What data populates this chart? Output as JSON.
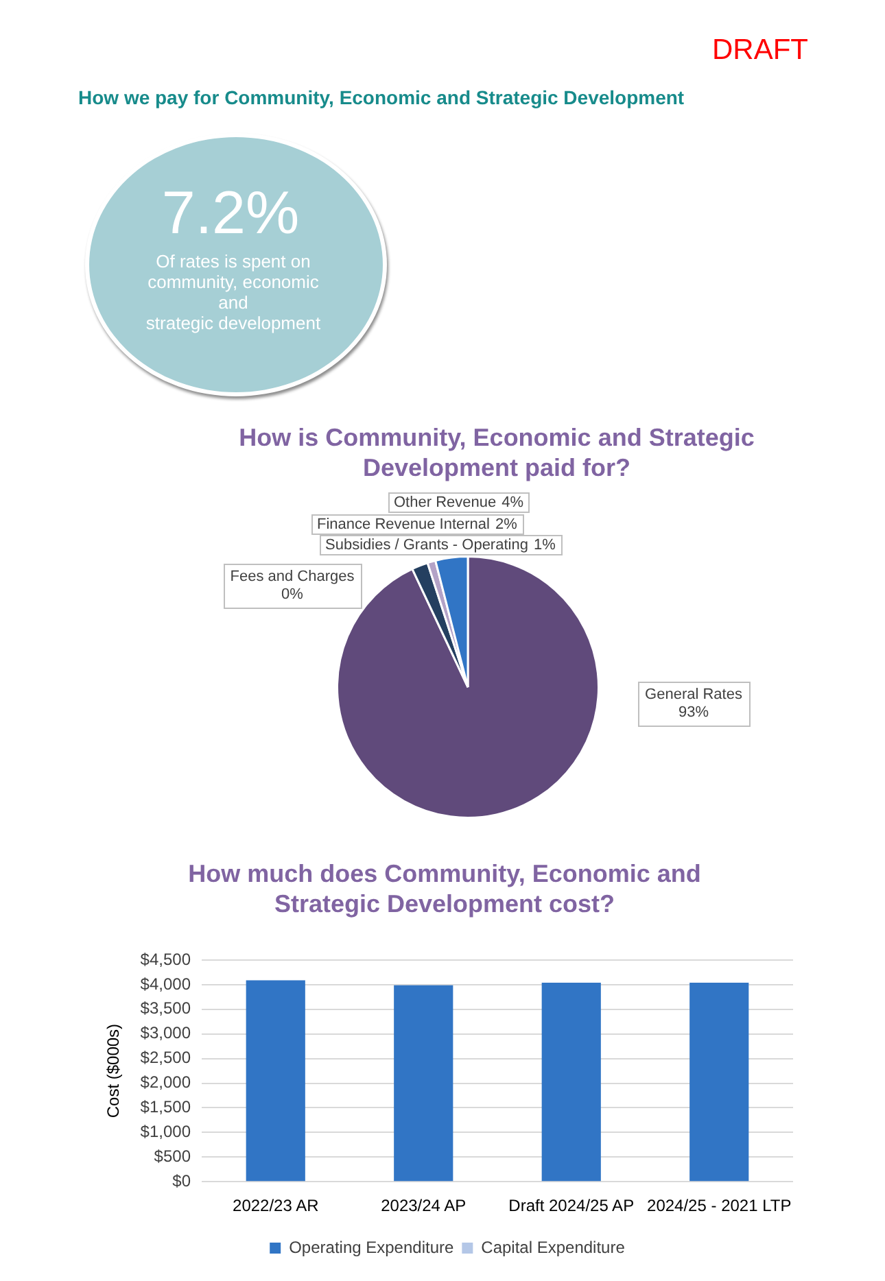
{
  "chart_data": [
    {
      "type": "other",
      "title": "How we pay for Community, Economic and Strategic Development",
      "annotations": [
        "DRAFT",
        "7.2%",
        "Of rates is spent on community, economic and\nstrategic development"
      ]
    },
    {
      "type": "pie",
      "title": "How is Community, Economic and Strategic Development paid for?",
      "categories": [
        "General Rates",
        "Finance Revenue Internal",
        "Fees and Charges",
        "Subsidies / Grants - Operating",
        "Other Revenue"
      ],
      "values": [
        93,
        2,
        0,
        1,
        4
      ],
      "colors": [
        "#604a7b",
        "#243f60",
        "#1f497d",
        "#b3a2c7",
        "#3175c5"
      ],
      "value_labels": [
        "93%",
        "2%",
        "0%",
        "1%",
        "4%"
      ]
    },
    {
      "type": "bar",
      "title": "How much does Community, Economic and Strategic Development cost?",
      "ylabel": "Cost ($000s)",
      "categories": [
        "2022/23 AR",
        "2023/24 AP",
        "Draft 2024/25 AP",
        "2024/25 - 2021 LTP"
      ],
      "series": [
        {
          "name": "Operating Expenditure",
          "color": "#3175c5",
          "values": [
            4090,
            3990,
            4040,
            4040
          ]
        },
        {
          "name": "Capital Expenditure",
          "color": "#b4c7e7",
          "values": [
            0,
            0,
            0,
            0
          ]
        }
      ],
      "stacked": true,
      "ylim": [
        0,
        4500
      ],
      "yticks": [
        {
          "value": 0,
          "label": "$0"
        },
        {
          "value": 500,
          "label": "$500"
        },
        {
          "value": 1000,
          "label": "$1,000"
        },
        {
          "value": 1500,
          "label": "$1,500"
        },
        {
          "value": 2000,
          "label": "$2,000"
        },
        {
          "value": 2500,
          "label": "$2,500"
        },
        {
          "value": 3000,
          "label": "$3,000"
        },
        {
          "value": 3500,
          "label": "$3,500"
        },
        {
          "value": 4000,
          "label": "$4,000"
        },
        {
          "value": 4500,
          "label": "$4,500"
        }
      ],
      "grid": "y",
      "legend": "bottom"
    }
  ]
}
